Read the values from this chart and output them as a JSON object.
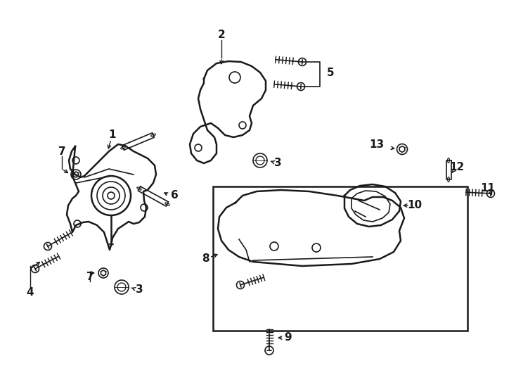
{
  "bg_color": "#ffffff",
  "line_color": "#1a1a1a",
  "figsize": [
    7.34,
    5.4
  ],
  "dpi": 100
}
